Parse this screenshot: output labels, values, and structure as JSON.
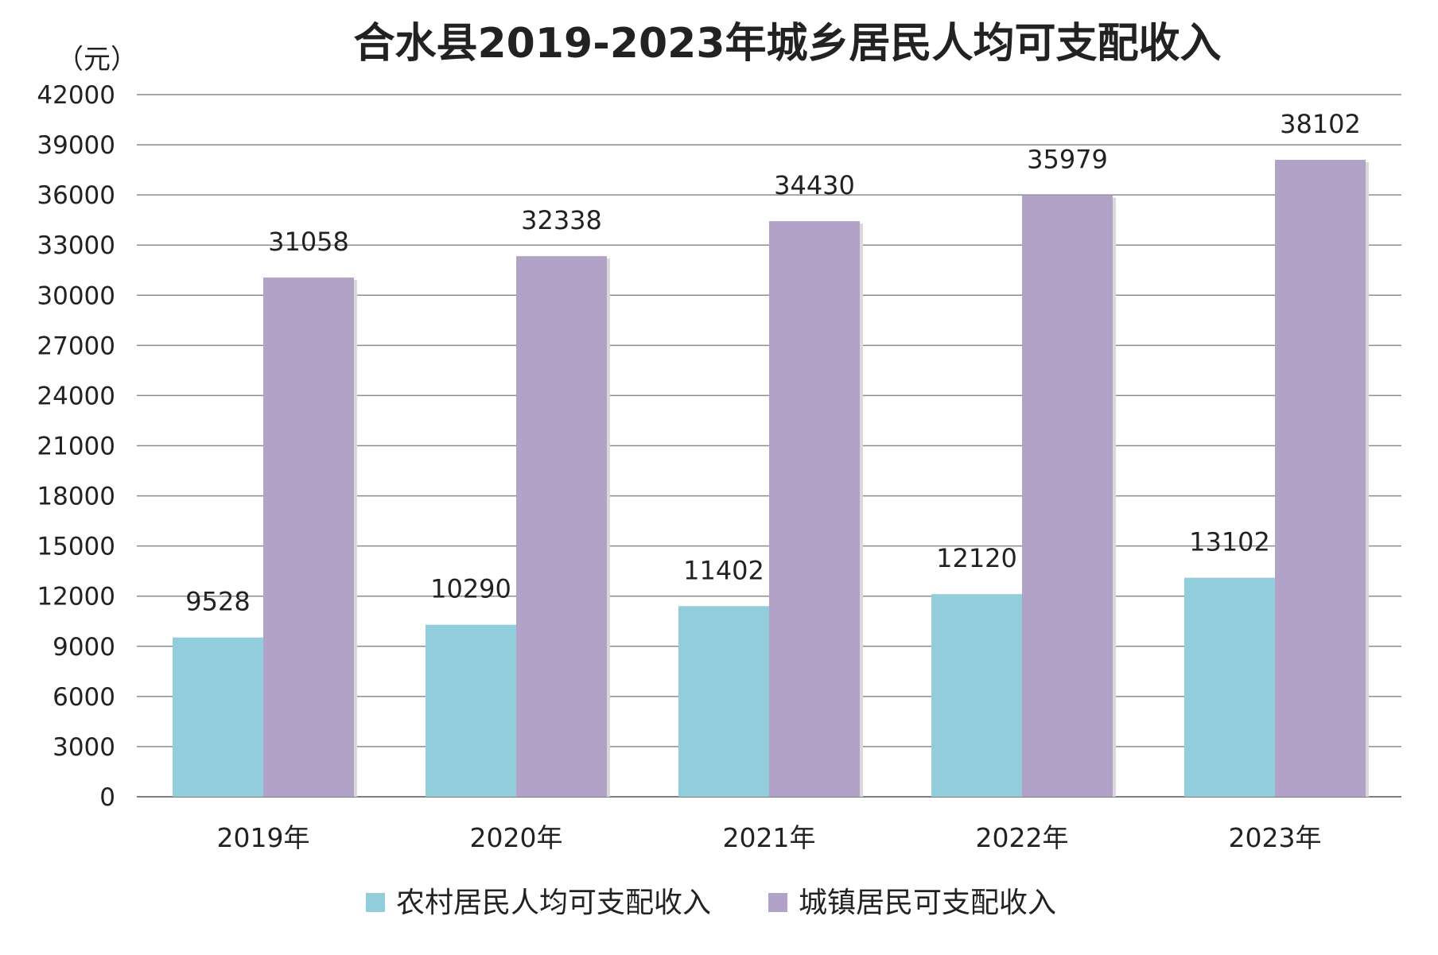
{
  "chart_data": {
    "type": "bar",
    "title": "合水县2019-2023年城乡居民人均可支配收入",
    "unit_label": "（元）",
    "categories": [
      "2019年",
      "2020年",
      "2021年",
      "2022年",
      "2023年"
    ],
    "series": [
      {
        "name": "农村居民人均可支配收入",
        "color": "#92CDDC",
        "values": [
          9528,
          10290,
          11402,
          12120,
          13102
        ]
      },
      {
        "name": "城镇居民可支配收入",
        "color": "#B2A2C7",
        "values": [
          31058,
          32338,
          34430,
          35979,
          38102
        ]
      }
    ],
    "ylim": [
      0,
      42000
    ],
    "yticks": [
      0,
      3000,
      6000,
      9000,
      12000,
      15000,
      18000,
      21000,
      24000,
      27000,
      30000,
      33000,
      36000,
      39000,
      42000
    ],
    "grid": true,
    "legend_position": "bottom"
  }
}
